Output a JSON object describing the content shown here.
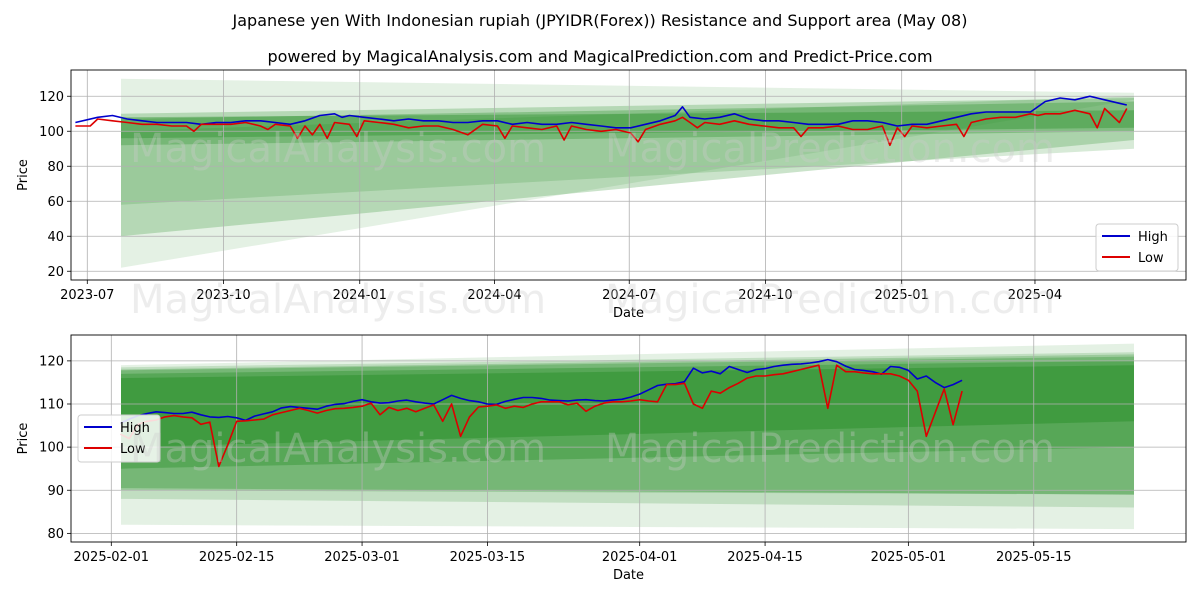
{
  "title_line1": "Japanese yen With Indonesian rupiah (JPYIDR(Forex)) Resistance and Support area (May 08)",
  "title_line2": "powered by MagicalAnalysis.com and MagicalPrediction.com and Predict-Price.com",
  "watermarks": [
    "MagicalAnalysis.com",
    "MagicalPrediction.com"
  ],
  "colors": {
    "high": "#0000cc",
    "low": "#dd0000",
    "band": "#228b22"
  },
  "chart_data": [
    {
      "type": "line",
      "xlabel": "Date",
      "ylabel": "Price",
      "x_ticks": [
        "2023-07",
        "2023-10",
        "2024-01",
        "2024-04",
        "2024-07",
        "2024-10",
        "2025-01",
        "2025-04"
      ],
      "x_tick_days": [
        -37,
        55,
        147,
        238,
        329,
        421,
        513,
        603
      ],
      "y_ticks": [
        20,
        40,
        60,
        80,
        100,
        120
      ],
      "xlim_days": [
        -48,
        705
      ],
      "ylim": [
        15,
        135
      ],
      "grid": true,
      "legend": {
        "position": "bottom-right",
        "entries": [
          "High",
          "Low"
        ]
      },
      "series": [
        {
          "name": "High",
          "x_days": [
            -45,
            -30,
            -20,
            -10,
            0,
            10,
            20,
            30,
            40,
            50,
            60,
            70,
            80,
            90,
            100,
            110,
            120,
            130,
            135,
            140,
            150,
            160,
            170,
            180,
            190,
            200,
            210,
            220,
            230,
            240,
            250,
            260,
            270,
            280,
            290,
            300,
            310,
            320,
            330,
            340,
            350,
            360,
            365,
            370,
            380,
            390,
            400,
            410,
            420,
            430,
            440,
            450,
            460,
            470,
            480,
            490,
            500,
            510,
            520,
            530,
            540,
            550,
            560,
            570,
            580,
            590,
            600,
            610,
            620,
            630,
            640,
            645,
            650,
            660,
            665
          ],
          "values": [
            105,
            108,
            109,
            107,
            106,
            105,
            105,
            105,
            104,
            105,
            105,
            106,
            106,
            105,
            104,
            106,
            109,
            110,
            108,
            109,
            108,
            107,
            106,
            107,
            106,
            106,
            105,
            105,
            106,
            106,
            104,
            105,
            104,
            104,
            105,
            104,
            103,
            102,
            102,
            104,
            106,
            109,
            114,
            108,
            107,
            108,
            110,
            107,
            106,
            106,
            105,
            104,
            104,
            104,
            106,
            106,
            105,
            103,
            104,
            104,
            106,
            108,
            110,
            111,
            111,
            111,
            111,
            117,
            119,
            118,
            120,
            119,
            118,
            116,
            115
          ]
        },
        {
          "name": "Low",
          "x_days": [
            -45,
            -35,
            -30,
            -20,
            -10,
            0,
            10,
            20,
            30,
            35,
            40,
            50,
            60,
            70,
            80,
            85,
            90,
            100,
            105,
            110,
            115,
            120,
            125,
            130,
            140,
            145,
            150,
            160,
            170,
            180,
            190,
            200,
            210,
            220,
            230,
            240,
            245,
            250,
            260,
            270,
            280,
            285,
            290,
            300,
            310,
            320,
            330,
            335,
            340,
            350,
            360,
            365,
            370,
            375,
            380,
            390,
            400,
            410,
            420,
            430,
            440,
            445,
            450,
            460,
            470,
            480,
            490,
            500,
            505,
            510,
            515,
            520,
            530,
            540,
            550,
            555,
            560,
            570,
            580,
            590,
            600,
            605,
            610,
            620,
            630,
            640,
            645,
            650,
            660,
            665
          ],
          "values": [
            103,
            103,
            107,
            106,
            105,
            104,
            104,
            103,
            103,
            100,
            104,
            104,
            104,
            105,
            103,
            101,
            104,
            103,
            96,
            103,
            98,
            104,
            96,
            105,
            104,
            97,
            106,
            105,
            104,
            102,
            103,
            103,
            101,
            98,
            104,
            103,
            96,
            103,
            102,
            101,
            103,
            95,
            103,
            101,
            100,
            101,
            99,
            94,
            101,
            104,
            106,
            108,
            105,
            102,
            105,
            104,
            106,
            104,
            103,
            102,
            102,
            97,
            102,
            102,
            103,
            101,
            101,
            103,
            92,
            102,
            97,
            103,
            102,
            103,
            104,
            97,
            105,
            107,
            108,
            108,
            110,
            109,
            110,
            110,
            112,
            110,
            102,
            113,
            105,
            113
          ]
        }
      ]
    },
    {
      "type": "line",
      "xlabel": "Date",
      "ylabel": "Price",
      "x_ticks": [
        "2025-02-01",
        "2025-02-15",
        "2025-03-01",
        "2025-03-15",
        "2025-04-01",
        "2025-04-15",
        "2025-05-01",
        "2025-05-15"
      ],
      "x_tick_days": [
        0,
        14,
        28,
        42,
        59,
        73,
        89,
        103
      ],
      "y_ticks": [
        80,
        90,
        100,
        110,
        120
      ],
      "xlim_days": [
        -4.5,
        120
      ],
      "ylim": [
        78,
        126
      ],
      "grid": true,
      "legend": {
        "position": "center-left",
        "entries": [
          "High",
          "Low"
        ]
      },
      "series": [
        {
          "name": "High",
          "x_days": [
            1,
            2,
            3,
            4,
            5,
            6,
            7,
            8,
            9,
            10,
            11,
            12,
            13,
            14,
            15,
            16,
            17,
            18,
            19,
            20,
            21,
            22,
            23,
            24,
            25,
            26,
            27,
            28,
            29,
            30,
            31,
            32,
            33,
            34,
            35,
            36,
            37,
            38,
            39,
            40,
            41,
            42,
            43,
            44,
            45,
            46,
            47,
            48,
            49,
            50,
            51,
            52,
            53,
            54,
            55,
            56,
            57,
            58,
            59,
            60,
            61,
            62,
            63,
            64,
            65,
            66,
            67,
            68,
            69,
            70,
            71,
            72,
            73,
            74,
            75,
            76,
            77,
            78,
            79,
            80,
            81,
            82,
            83,
            84,
            85,
            86,
            87,
            88,
            89,
            90,
            91,
            92,
            93,
            94,
            95
          ],
          "values": [
            105.5,
            106.5,
            107.3,
            107.8,
            108.2,
            108.0,
            107.8,
            107.8,
            108.1,
            107.5,
            107.0,
            106.9,
            107.1,
            106.8,
            106.2,
            107.2,
            107.7,
            108.2,
            109.1,
            109.4,
            109.2,
            109.0,
            108.8,
            109.5,
            109.9,
            110.1,
            110.6,
            111.0,
            110.5,
            110.2,
            110.3,
            110.7,
            110.9,
            110.5,
            110.2,
            110.0,
            111.0,
            112.0,
            111.3,
            110.8,
            110.5,
            110.0,
            109.9,
            110.6,
            111.1,
            111.5,
            111.5,
            111.3,
            110.9,
            110.8,
            110.7,
            110.9,
            111.0,
            110.8,
            110.7,
            110.9,
            111.1,
            111.6,
            112.3,
            113.3,
            114.3,
            114.6,
            114.7,
            115.2,
            118.3,
            117.2,
            117.6,
            117.0,
            118.7,
            118.0,
            117.3,
            118.0,
            118.2,
            118.7,
            119.0,
            119.2,
            119.3,
            119.5,
            119.8,
            120.3,
            119.8,
            118.8,
            118.0,
            117.8,
            117.5,
            116.9,
            118.7,
            118.5,
            117.8,
            115.8,
            116.5,
            115.0,
            113.8,
            114.5,
            115.5
          ]
        },
        {
          "name": "Low",
          "x_days": [
            1,
            2,
            3,
            4,
            5,
            6,
            7,
            8,
            9,
            10,
            11,
            12,
            13,
            14,
            15,
            16,
            17,
            18,
            19,
            20,
            21,
            22,
            23,
            24,
            25,
            26,
            27,
            28,
            29,
            30,
            31,
            32,
            33,
            34,
            35,
            36,
            37,
            38,
            39,
            40,
            41,
            42,
            43,
            44,
            45,
            46,
            47,
            48,
            49,
            50,
            51,
            52,
            53,
            54,
            55,
            56,
            57,
            58,
            59,
            60,
            61,
            62,
            63,
            64,
            65,
            66,
            67,
            68,
            69,
            70,
            71,
            72,
            73,
            74,
            75,
            76,
            77,
            78,
            79,
            80,
            81,
            82,
            83,
            84,
            85,
            86,
            87,
            88,
            89,
            90,
            91,
            92,
            93,
            94,
            95
          ],
          "values": [
            103.0,
            102.0,
            105.3,
            106.0,
            106.3,
            107.0,
            107.3,
            107.0,
            106.8,
            105.3,
            105.8,
            95.5,
            100.5,
            106.0,
            106.1,
            106.3,
            106.5,
            107.5,
            108.0,
            108.5,
            109.0,
            108.5,
            107.9,
            108.5,
            108.9,
            109.0,
            109.2,
            109.5,
            110.2,
            107.5,
            109.2,
            108.5,
            109.0,
            108.2,
            109.0,
            109.8,
            106.0,
            110.0,
            102.5,
            107.0,
            109.3,
            109.5,
            109.8,
            109.0,
            109.5,
            109.2,
            110.0,
            110.5,
            110.5,
            110.5,
            109.8,
            110.2,
            108.3,
            109.5,
            110.2,
            110.5,
            110.5,
            110.7,
            111.0,
            110.7,
            110.5,
            114.5,
            114.5,
            114.8,
            110.0,
            109.0,
            113.0,
            112.5,
            113.8,
            114.8,
            116.0,
            116.5,
            116.5,
            116.8,
            117.0,
            117.5,
            118.0,
            118.5,
            119.0,
            109.0,
            119.0,
            117.5,
            117.5,
            117.2,
            117.0,
            117.0,
            117.0,
            116.5,
            115.5,
            113.0,
            102.5,
            108.0,
            113.5,
            105.2,
            113.0
          ]
        }
      ]
    }
  ]
}
